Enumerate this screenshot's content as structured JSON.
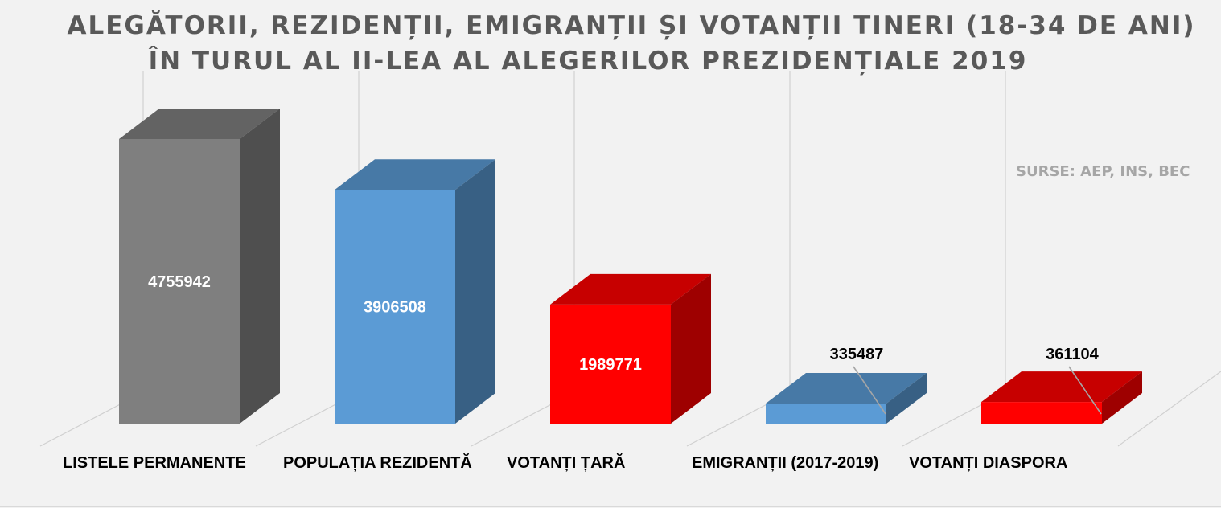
{
  "title": {
    "line1": "ALEGĂTORII, REZIDENȚII, EMIGRANȚII ȘI VOTANȚII TINERI (18-34 DE ANI)",
    "line2": "ÎN TURUL AL II-LEA AL ALEGERILOR PREZIDENȚIALE 2019"
  },
  "source_note": "SURSE: AEP, INS, BEC",
  "chart_data": {
    "type": "bar",
    "style": "3d-column",
    "title": "ALEGĂTORII, REZIDENȚII, EMIGRANȚII ȘI VOTANȚII TINERI (18-34 DE ANI) ÎN TURUL AL II-LEA AL ALEGERILOR PREZIDENȚIALE 2019",
    "categories": [
      "LISTELE PERMANENTE",
      "POPULAȚIA REZIDENTĂ",
      "VOTANȚI ȚARĂ",
      "EMIGRANȚII (2017-2019)",
      "VOTANȚI DIASPORA"
    ],
    "values": [
      4755942,
      3906508,
      1989771,
      335487,
      361104
    ],
    "data_labels": [
      "4755942",
      "3906508",
      "1989771",
      "335487",
      "361104"
    ],
    "colors": [
      "#7f7f7f",
      "#5b9bd5",
      "#ff0000",
      "#5b9bd5",
      "#ff0000"
    ],
    "ylim": [
      0,
      5000000
    ],
    "grid": true,
    "legend": "none"
  }
}
